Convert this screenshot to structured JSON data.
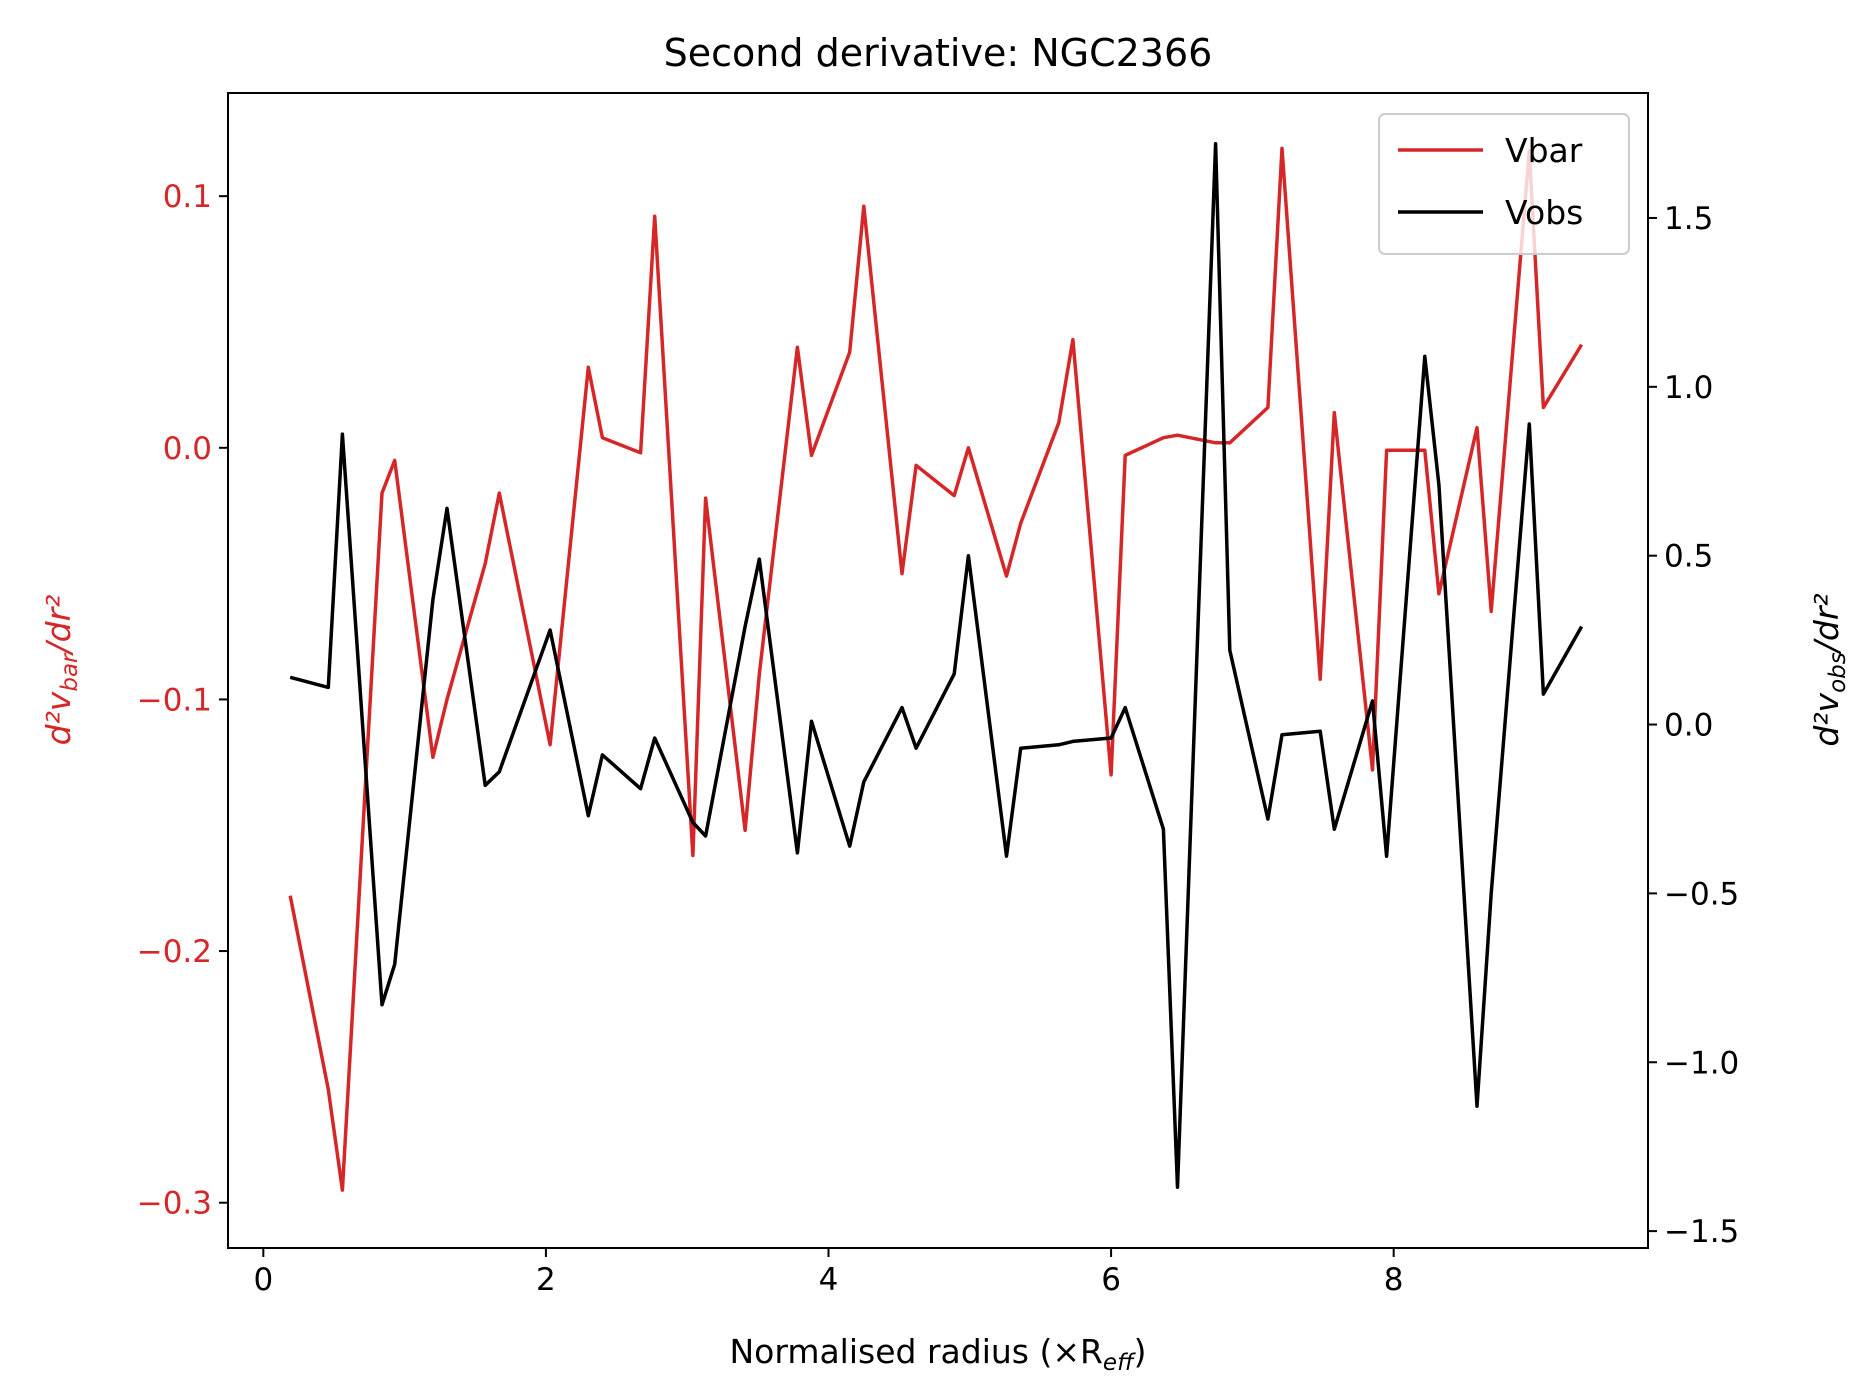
{
  "chart_data": {
    "type": "line",
    "title": "Second derivative: NGC2366",
    "xlabel": "Normalised radius (×R",
    "xlabel_sub": "eff",
    "xlabel_suffix": ")",
    "ylabel_left": "d²v_bar/dr²",
    "ylabel_right": "d²v_obs/dr²",
    "xlim": [
      -0.25,
      9.8
    ],
    "ylim_left": [
      -0.318,
      0.141
    ],
    "ylim_right": [
      -1.55,
      1.87
    ],
    "xticks": [
      0,
      2,
      4,
      6,
      8
    ],
    "xtick_labels": [
      "0",
      "2",
      "4",
      "6",
      "8"
    ],
    "yticks_left": [
      -0.3,
      -0.2,
      -0.1,
      0.0,
      0.1
    ],
    "ytick_labels_left": [
      "−0.3",
      "−0.2",
      "−0.1",
      "0.0",
      "0.1"
    ],
    "yticks_right": [
      -1.5,
      -1.0,
      -0.5,
      0.0,
      0.5,
      1.0,
      1.5
    ],
    "ytick_labels_right": [
      "−1.5",
      "−1.0",
      "−0.5",
      "0.0",
      "0.5",
      "1.0",
      "1.5"
    ],
    "grid": false,
    "legend_position": "top-right",
    "colors": {
      "left_axis": "#d62728",
      "right_axis": "#000000"
    },
    "series": [
      {
        "name": "Vbar",
        "axis": "left",
        "color": "#d62728",
        "x": [
          0.19,
          0.46,
          0.56,
          0.84,
          0.93,
          1.2,
          1.3,
          1.57,
          1.67,
          2.03,
          2.3,
          2.4,
          2.67,
          2.77,
          3.04,
          3.13,
          3.41,
          3.51,
          3.78,
          3.88,
          4.15,
          4.25,
          4.52,
          4.62,
          4.89,
          4.99,
          5.26,
          5.36,
          5.63,
          5.73,
          6.0,
          6.1,
          6.37,
          6.47,
          6.74,
          6.84,
          7.11,
          7.21,
          7.48,
          7.58,
          7.85,
          7.95,
          8.22,
          8.32,
          8.59,
          8.69,
          8.96,
          9.06,
          9.33
        ],
        "values": [
          -0.178,
          -0.255,
          -0.295,
          -0.018,
          -0.005,
          -0.123,
          -0.1,
          -0.046,
          -0.018,
          -0.118,
          0.032,
          0.004,
          -0.002,
          0.092,
          -0.162,
          -0.02,
          -0.152,
          -0.09,
          0.04,
          -0.003,
          0.038,
          0.096,
          -0.05,
          -0.007,
          -0.019,
          0.0,
          -0.051,
          -0.03,
          0.01,
          0.043,
          -0.13,
          -0.003,
          0.004,
          0.005,
          0.002,
          0.002,
          0.016,
          0.119,
          -0.092,
          0.014,
          -0.128,
          -0.001,
          -0.001,
          -0.058,
          0.008,
          -0.065,
          0.118,
          0.016,
          0.041
        ]
      },
      {
        "name": "Vobs",
        "axis": "right",
        "color": "#000000",
        "x": [
          0.19,
          0.46,
          0.56,
          0.84,
          0.93,
          1.2,
          1.3,
          1.57,
          1.67,
          2.03,
          2.3,
          2.4,
          2.67,
          2.77,
          3.04,
          3.13,
          3.41,
          3.51,
          3.78,
          3.88,
          4.15,
          4.25,
          4.52,
          4.62,
          4.89,
          4.99,
          5.26,
          5.36,
          5.63,
          5.73,
          6.0,
          6.1,
          6.37,
          6.47,
          6.74,
          6.84,
          7.11,
          7.21,
          7.48,
          7.58,
          7.85,
          7.95,
          8.22,
          8.32,
          8.59,
          8.69,
          8.96,
          9.06,
          9.33
        ],
        "values": [
          0.14,
          0.11,
          0.86,
          -0.83,
          -0.71,
          0.37,
          0.64,
          -0.18,
          -0.14,
          0.28,
          -0.27,
          -0.09,
          -0.19,
          -0.04,
          -0.29,
          -0.33,
          0.29,
          0.49,
          -0.38,
          0.01,
          -0.36,
          -0.17,
          0.05,
          -0.07,
          0.15,
          0.5,
          -0.39,
          -0.07,
          -0.06,
          -0.05,
          -0.04,
          0.05,
          -0.31,
          -1.37,
          1.72,
          0.22,
          -0.28,
          -0.03,
          -0.02,
          -0.31,
          0.07,
          -0.39,
          1.09,
          0.71,
          -1.13,
          -0.5,
          0.89,
          0.09,
          0.29
        ]
      }
    ]
  }
}
